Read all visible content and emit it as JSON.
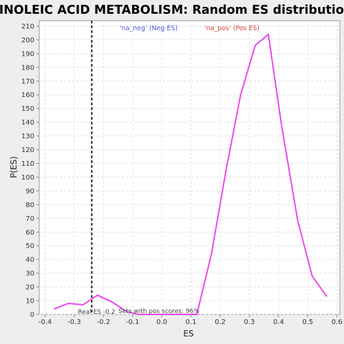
{
  "chart_data": {
    "type": "line",
    "title": "LINOLEIC ACID METABOLISM: Random ES distribution",
    "xlabel": "ES",
    "ylabel": "P(ES)",
    "xlim": [
      -0.42,
      0.61
    ],
    "ylim": [
      0,
      214
    ],
    "x_ticks": [
      -0.4,
      -0.3,
      -0.2,
      -0.1,
      0.0,
      0.1,
      0.2,
      0.3,
      0.4,
      0.5,
      0.6
    ],
    "x_tick_labels": [
      "-0.4",
      "-0.3",
      "-0.2",
      "-0.1",
      "0.0",
      "0.1",
      "0.2",
      "0.3",
      "0.4",
      "0.5",
      "0.6"
    ],
    "y_ticks": [
      0,
      10,
      20,
      30,
      40,
      50,
      60,
      70,
      80,
      90,
      100,
      110,
      120,
      130,
      140,
      150,
      160,
      170,
      180,
      190,
      200,
      210
    ],
    "y_tick_labels": [
      "0",
      "10",
      "20",
      "30",
      "40",
      "50",
      "60",
      "70",
      "80",
      "90",
      "100",
      "110",
      "120",
      "130",
      "140",
      "150",
      "160",
      "170",
      "180",
      "190",
      "200",
      "210"
    ],
    "grid": true,
    "series": [
      {
        "color": "#ee44ee",
        "x": [
          -0.37,
          -0.32,
          -0.27,
          -0.22,
          -0.17,
          -0.12,
          -0.08,
          -0.03,
          0.02,
          0.07,
          0.12,
          0.17,
          0.22,
          0.27,
          0.32,
          0.365,
          0.41,
          0.465,
          0.515,
          0.565
        ],
        "y": [
          4,
          8,
          7,
          14,
          9,
          2,
          0,
          0,
          0,
          0,
          0,
          44,
          105,
          160,
          196,
          204,
          138,
          69,
          28,
          13
        ]
      }
    ],
    "real_es": {
      "x": -0.24,
      "color": "#222222",
      "label": "Real ES -0.2"
    },
    "legend": {
      "placement": "top",
      "neg_label": "'na_neg' (Neg ES)",
      "neg_color": "#5555dd",
      "pos_label": "'na_pos' (Pos ES)",
      "pos_color": "#dd4444"
    },
    "annotation": "Sets with pos scores: 96%"
  }
}
